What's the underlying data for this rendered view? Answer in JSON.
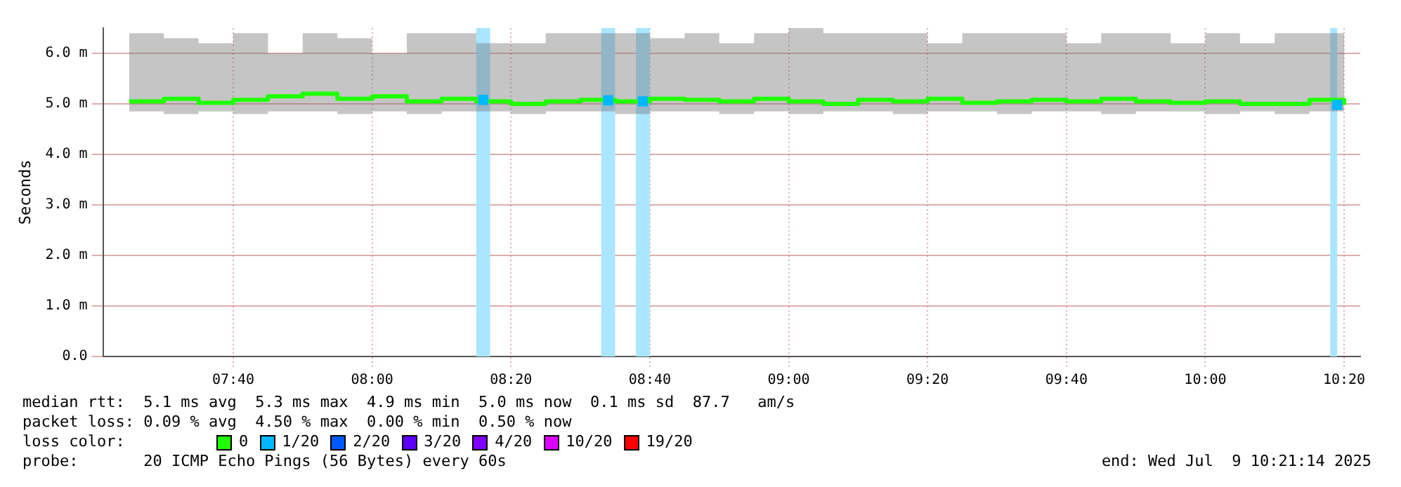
{
  "chart_data": {
    "type": "line",
    "ylabel": "Seconds",
    "legend_title": "loss color:",
    "legend": "bottom",
    "grid": true,
    "xlim": [
      7.354,
      10.372
    ],
    "ylim": [
      0,
      6.5
    ],
    "xticks": [
      {
        "value": 7.6667,
        "label": "07:40"
      },
      {
        "value": 8,
        "label": "08:00"
      },
      {
        "value": 8.3333,
        "label": "08:20"
      },
      {
        "value": 8.6667,
        "label": "08:40"
      },
      {
        "value": 9,
        "label": "09:00"
      },
      {
        "value": 9.3333,
        "label": "09:20"
      },
      {
        "value": 9.6667,
        "label": "09:40"
      },
      {
        "value": 10,
        "label": "10:00"
      },
      {
        "value": 10.3333,
        "label": "10:20"
      }
    ],
    "yticks": [
      {
        "value": 0,
        "label": "0.0"
      },
      {
        "value": 1,
        "label": "1.0 m"
      },
      {
        "value": 2,
        "label": "2.0 m"
      },
      {
        "value": 3,
        "label": "3.0 m"
      },
      {
        "value": 4,
        "label": "4.0 m"
      },
      {
        "value": 5,
        "label": "5.0 m"
      },
      {
        "value": 6,
        "label": "6.0 m"
      }
    ],
    "x": [
      7.4167,
      7.5,
      7.5833,
      7.6667,
      7.75,
      7.8333,
      7.9167,
      8,
      8.0833,
      8.1667,
      8.25,
      8.3333,
      8.4167,
      8.5,
      8.5833,
      8.6667,
      8.75,
      8.8333,
      8.9167,
      9,
      9.0833,
      9.1667,
      9.25,
      9.3333,
      9.4167,
      9.5,
      9.5833,
      9.6667,
      9.75,
      9.8333,
      9.9167,
      10,
      10.0833,
      10.1667,
      10.25,
      10.3333
    ],
    "series": [
      {
        "name": "0",
        "type": "step",
        "color": "#20ff00",
        "values": [
          5.05,
          5.1,
          5.02,
          5.08,
          5.15,
          5.2,
          5.1,
          5.15,
          5.05,
          5.1,
          5.05,
          5.0,
          5.05,
          5.08,
          5.05,
          5.1,
          5.08,
          5.05,
          5.1,
          5.05,
          5.0,
          5.08,
          5.05,
          5.1,
          5.02,
          5.05,
          5.08,
          5.05,
          5.1,
          5.05,
          5.02,
          5.05,
          5.0,
          5.0,
          5.08,
          4.98
        ],
        "lower": [
          4.85,
          4.8,
          4.85,
          4.8,
          4.85,
          4.85,
          4.8,
          4.85,
          4.8,
          4.85,
          4.85,
          4.8,
          4.85,
          4.85,
          4.8,
          4.85,
          4.85,
          4.8,
          4.85,
          4.8,
          4.85,
          4.85,
          4.8,
          4.85,
          4.85,
          4.8,
          4.85,
          4.85,
          4.8,
          4.85,
          4.85,
          4.8,
          4.85,
          4.8,
          4.85,
          4.9
        ],
        "upper": [
          6.4,
          6.3,
          6.2,
          6.4,
          6.0,
          6.4,
          6.3,
          6.0,
          6.4,
          6.4,
          6.2,
          6.2,
          6.4,
          6.4,
          6.4,
          6.3,
          6.4,
          6.2,
          6.4,
          6.5,
          6.4,
          6.4,
          6.4,
          6.2,
          6.4,
          6.4,
          6.4,
          6.2,
          6.4,
          6.4,
          6.2,
          6.4,
          6.2,
          6.4,
          6.4,
          5.8
        ]
      },
      {
        "name": "1/20",
        "type": "scatter",
        "marker": "square",
        "color": "#00b8ff",
        "x": [
          8.2667,
          8.5667,
          8.65,
          10.3167
        ],
        "values": [
          5.08,
          5.07,
          5.05,
          4.98
        ]
      },
      {
        "name": "2/20",
        "type": "scatter",
        "marker": "square",
        "color": "#0059ff",
        "values": [
          null,
          null,
          null,
          null,
          null,
          null,
          null,
          null,
          null,
          null,
          null,
          null,
          null,
          null,
          null,
          null,
          null,
          null,
          null,
          null,
          null,
          null,
          null,
          null,
          null,
          null,
          null,
          null,
          null,
          null,
          null,
          null,
          null,
          null,
          null,
          null
        ]
      },
      {
        "name": "3/20",
        "type": "scatter",
        "marker": "square",
        "color": "#5e00ff",
        "values": [
          null,
          null,
          null,
          null,
          null,
          null,
          null,
          null,
          null,
          null,
          null,
          null,
          null,
          null,
          null,
          null,
          null,
          null,
          null,
          null,
          null,
          null,
          null,
          null,
          null,
          null,
          null,
          null,
          null,
          null,
          null,
          null,
          null,
          null,
          null,
          null
        ]
      },
      {
        "name": "4/20",
        "type": "scatter",
        "marker": "square",
        "color": "#7e00ff",
        "values": [
          null,
          null,
          null,
          null,
          null,
          null,
          null,
          null,
          null,
          null,
          null,
          null,
          null,
          null,
          null,
          null,
          null,
          null,
          null,
          null,
          null,
          null,
          null,
          null,
          null,
          null,
          null,
          null,
          null,
          null,
          null,
          null,
          null,
          null,
          null,
          null
        ]
      },
      {
        "name": "10/20",
        "type": "scatter",
        "marker": "square",
        "color": "#dd00ff",
        "values": [
          null,
          null,
          null,
          null,
          null,
          null,
          null,
          null,
          null,
          null,
          null,
          null,
          null,
          null,
          null,
          null,
          null,
          null,
          null,
          null,
          null,
          null,
          null,
          null,
          null,
          null,
          null,
          null,
          null,
          null,
          null,
          null,
          null,
          null,
          null,
          null
        ]
      },
      {
        "name": "19/20",
        "type": "scatter",
        "marker": "square",
        "color": "#ff0000",
        "values": [
          null,
          null,
          null,
          null,
          null,
          null,
          null,
          null,
          null,
          null,
          null,
          null,
          null,
          null,
          null,
          null,
          null,
          null,
          null,
          null,
          null,
          null,
          null,
          null,
          null,
          null,
          null,
          null,
          null,
          null,
          null,
          null,
          null,
          null,
          null,
          null
        ]
      }
    ],
    "bands": [
      {
        "axis": "x",
        "from": 8.25,
        "to": 8.2833,
        "color": "#aae6ff"
      },
      {
        "axis": "x",
        "from": 8.55,
        "to": 8.5833,
        "color": "#aae6ff"
      },
      {
        "axis": "x",
        "from": 8.6333,
        "to": 8.6667,
        "color": "#aae6ff"
      },
      {
        "axis": "x",
        "from": 10.3,
        "to": 10.3167,
        "color": "#aae6ff"
      }
    ],
    "annotations": [
      "median rtt:  5.1 ms avg  5.3 ms max  4.9 ms min  5.0 ms now  0.1 ms sd  87.7   am/s",
      "packet loss: 0.09 % avg  4.50 % max  0.00 % min  0.50 % now",
      "probe:       20 ICMP Echo Pings (56 Bytes) every 60s",
      "end: Wed Jul  9 10:21:14 2025"
    ]
  }
}
